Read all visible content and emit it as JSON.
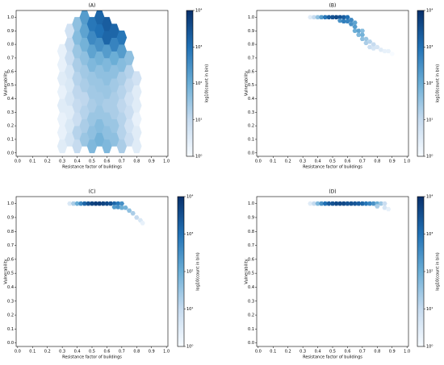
{
  "chart_data": [
    {
      "type": "hexbin",
      "title": "(A)",
      "xlabel": "Resistance factor of buildings",
      "ylabel": "Vulnerability",
      "colorbar_label": "log10(count in bin)",
      "xlim": [
        -0.01,
        1.01
      ],
      "ylim": [
        -0.025,
        1.05
      ],
      "xticks": [
        {
          "value": 0,
          "label": "0.0"
        },
        0.1,
        0.2,
        0.3,
        0.4,
        0.5,
        0.6,
        0.7,
        0.8,
        0.9,
        {
          "value": 1,
          "label": "1.0"
        }
      ],
      "yticks": [
        {
          "value": 0,
          "label": "0.0"
        },
        0.1,
        0.2,
        0.3,
        0.4,
        0.5,
        0.6,
        0.7,
        0.8,
        0.9,
        {
          "value": 1,
          "label": "1.0"
        }
      ],
      "clim": [
        1,
        10000
      ],
      "cscale": "log",
      "cticks": [
        {
          "value": 1,
          "label": "10⁰"
        },
        {
          "value": 10,
          "label": "10¹"
        },
        {
          "value": 100,
          "label": "10²"
        },
        {
          "value": 1000,
          "label": "10³"
        },
        {
          "value": 10000,
          "label": "10⁴"
        }
      ],
      "colormap": [
        "#f7fbff",
        "#c6dbef",
        "#6baed6",
        "#2171b5",
        "#08306b"
      ],
      "x": [
        0.3,
        0.3,
        0.3,
        0.3,
        0.3,
        0.3,
        0.3,
        0.3,
        0.35,
        0.35,
        0.35,
        0.35,
        0.35,
        0.35,
        0.35,
        0.35,
        0.35,
        0.4,
        0.4,
        0.4,
        0.4,
        0.4,
        0.4,
        0.4,
        0.4,
        0.4,
        0.4,
        0.45,
        0.45,
        0.45,
        0.45,
        0.45,
        0.45,
        0.45,
        0.45,
        0.45,
        0.45,
        0.5,
        0.5,
        0.5,
        0.5,
        0.5,
        0.5,
        0.5,
        0.5,
        0.5,
        0.5,
        0.55,
        0.55,
        0.55,
        0.55,
        0.55,
        0.55,
        0.55,
        0.55,
        0.55,
        0.55,
        0.6,
        0.6,
        0.6,
        0.6,
        0.6,
        0.6,
        0.6,
        0.6,
        0.6,
        0.6,
        0.65,
        0.65,
        0.65,
        0.65,
        0.65,
        0.65,
        0.65,
        0.65,
        0.65,
        0.7,
        0.7,
        0.7,
        0.7,
        0.7,
        0.7,
        0.7,
        0.7,
        0.7,
        0.75,
        0.75,
        0.75,
        0.75,
        0.75,
        0.75,
        0.75,
        0.8,
        0.8,
        0.8,
        0.8,
        0.8,
        0.8
      ],
      "y": [
        0.05,
        0.15,
        0.25,
        0.35,
        0.45,
        0.55,
        0.65,
        0.75,
        0.1,
        0.2,
        0.3,
        0.4,
        0.5,
        0.6,
        0.7,
        0.8,
        0.9,
        0.05,
        0.15,
        0.25,
        0.35,
        0.45,
        0.55,
        0.65,
        0.75,
        0.85,
        0.95,
        0.1,
        0.2,
        0.3,
        0.4,
        0.5,
        0.6,
        0.7,
        0.8,
        0.9,
        1.0,
        0.05,
        0.15,
        0.25,
        0.35,
        0.45,
        0.55,
        0.65,
        0.75,
        0.85,
        0.95,
        0.1,
        0.2,
        0.3,
        0.4,
        0.5,
        0.6,
        0.7,
        0.8,
        0.9,
        1.0,
        0.05,
        0.15,
        0.25,
        0.35,
        0.45,
        0.55,
        0.65,
        0.75,
        0.85,
        0.95,
        0.1,
        0.2,
        0.3,
        0.4,
        0.5,
        0.6,
        0.7,
        0.8,
        0.9,
        0.05,
        0.15,
        0.25,
        0.35,
        0.45,
        0.55,
        0.65,
        0.75,
        0.85,
        0.1,
        0.2,
        0.3,
        0.4,
        0.5,
        0.6,
        0.7,
        0.05,
        0.15,
        0.25,
        0.35,
        0.45,
        0.55
      ],
      "values": [
        3,
        2,
        2,
        3,
        2,
        3,
        2,
        2,
        5,
        4,
        3,
        5,
        4,
        5,
        8,
        10,
        6,
        10,
        15,
        8,
        10,
        12,
        15,
        20,
        30,
        50,
        40,
        30,
        20,
        15,
        12,
        20,
        25,
        40,
        80,
        150,
        200,
        60,
        40,
        30,
        20,
        25,
        30,
        60,
        150,
        400,
        800,
        80,
        50,
        30,
        25,
        30,
        40,
        80,
        300,
        1000,
        1500,
        60,
        40,
        30,
        20,
        30,
        40,
        60,
        200,
        1500,
        2000,
        40,
        30,
        20,
        20,
        25,
        40,
        100,
        500,
        1500,
        20,
        15,
        15,
        12,
        15,
        20,
        50,
        200,
        800,
        8,
        6,
        8,
        6,
        10,
        15,
        40,
        3,
        3,
        2,
        3,
        3,
        6
      ]
    },
    {
      "type": "hexbin",
      "title": "(B)",
      "xlabel": "Resistance factor of buildings",
      "ylabel": "Vulnerability",
      "colorbar_label": "log10(count in bin)",
      "xlim": [
        -0.01,
        1.01
      ],
      "ylim": [
        -0.025,
        1.05
      ],
      "xticks": [
        {
          "value": 0,
          "label": "0.0"
        },
        0.1,
        0.2,
        0.3,
        0.4,
        0.5,
        0.6,
        0.7,
        0.8,
        0.9,
        {
          "value": 1,
          "label": "1.0"
        }
      ],
      "yticks": [
        {
          "value": 0,
          "label": "0.0"
        },
        0.1,
        0.2,
        0.3,
        0.4,
        0.5,
        0.6,
        0.7,
        0.8,
        0.9,
        {
          "value": 1,
          "label": "1.0"
        }
      ],
      "clim": [
        1,
        10000
      ],
      "cscale": "log",
      "cticks": [
        {
          "value": 1,
          "label": "10⁰"
        },
        {
          "value": 10,
          "label": "10¹"
        },
        {
          "value": 100,
          "label": "10²"
        },
        {
          "value": 1000,
          "label": "10³"
        },
        {
          "value": 10000,
          "label": "10⁴"
        }
      ],
      "colormap": [
        "#f7fbff",
        "#c6dbef",
        "#6baed6",
        "#2171b5",
        "#08306b"
      ],
      "x": [
        0.35,
        0.375,
        0.4,
        0.425,
        0.45,
        0.475,
        0.5,
        0.525,
        0.55,
        0.575,
        0.6,
        0.55,
        0.575,
        0.6,
        0.625,
        0.625,
        0.65,
        0.65,
        0.65,
        0.675,
        0.675,
        0.7,
        0.7,
        0.7,
        0.725,
        0.725,
        0.75,
        0.75,
        0.775,
        0.775,
        0.8,
        0.825,
        0.85,
        0.875,
        0.9
      ],
      "y": [
        1.0,
        1.0,
        1.0,
        1.0,
        1.0,
        1.0,
        1.0,
        1.0,
        1.0,
        1.0,
        1.0,
        0.975,
        0.97,
        0.97,
        0.98,
        0.95,
        0.96,
        0.93,
        0.9,
        0.9,
        0.87,
        0.9,
        0.87,
        0.84,
        0.84,
        0.81,
        0.82,
        0.78,
        0.8,
        0.77,
        0.78,
        0.76,
        0.75,
        0.75,
        0.73
      ],
      "values": [
        3,
        10,
        40,
        200,
        800,
        2000,
        3000,
        4000,
        3000,
        2000,
        1000,
        300,
        600,
        500,
        400,
        300,
        150,
        200,
        100,
        150,
        60,
        50,
        80,
        40,
        30,
        20,
        15,
        8,
        10,
        5,
        5,
        3,
        2,
        2,
        1
      ]
    },
    {
      "type": "hexbin",
      "title": "(C)",
      "xlabel": "Resistance factor of buildings",
      "ylabel": "Vulnerability",
      "colorbar_label": "log10(count in bin)",
      "xlim": [
        -0.01,
        1.01
      ],
      "ylim": [
        -0.025,
        1.05
      ],
      "xticks": [
        {
          "value": 0,
          "label": "0.0"
        },
        0.1,
        0.2,
        0.3,
        0.4,
        0.5,
        0.6,
        0.7,
        0.8,
        0.9,
        {
          "value": 1,
          "label": "1.0"
        }
      ],
      "yticks": [
        {
          "value": 0,
          "label": "0.0"
        },
        0.1,
        0.2,
        0.3,
        0.4,
        0.5,
        0.6,
        0.7,
        0.8,
        0.9,
        {
          "value": 1,
          "label": "1.0"
        }
      ],
      "clim": [
        1,
        10000
      ],
      "cscale": "log",
      "cticks": [
        {
          "value": 1,
          "label": "10⁰"
        },
        {
          "value": 10,
          "label": "10¹"
        },
        {
          "value": 100,
          "label": "10²"
        },
        {
          "value": 1000,
          "label": "10³"
        },
        {
          "value": 10000,
          "label": "10⁴"
        }
      ],
      "colormap": [
        "#f7fbff",
        "#c6dbef",
        "#6baed6",
        "#2171b5",
        "#08306b"
      ],
      "x": [
        0.35,
        0.375,
        0.4,
        0.425,
        0.45,
        0.475,
        0.5,
        0.525,
        0.55,
        0.575,
        0.6,
        0.625,
        0.65,
        0.675,
        0.7,
        0.65,
        0.675,
        0.7,
        0.725,
        0.75,
        0.775,
        0.8,
        0.825,
        0.84
      ],
      "y": [
        1.0,
        1.0,
        1.0,
        1.0,
        1.0,
        1.0,
        1.0,
        1.0,
        1.0,
        1.0,
        1.0,
        1.0,
        1.0,
        1.0,
        1.0,
        0.975,
        0.975,
        0.97,
        0.97,
        0.95,
        0.93,
        0.9,
        0.88,
        0.86
      ],
      "values": [
        4,
        20,
        100,
        400,
        1500,
        3000,
        5000,
        6000,
        6000,
        5000,
        4000,
        3000,
        1500,
        800,
        300,
        200,
        300,
        100,
        80,
        40,
        20,
        10,
        4,
        2
      ]
    },
    {
      "type": "hexbin",
      "title": "(D)",
      "xlabel": "Resistance factor of buildings",
      "ylabel": "Vulnerability",
      "colorbar_label": "log10(count in bin)",
      "xlim": [
        -0.01,
        1.01
      ],
      "ylim": [
        -0.025,
        1.05
      ],
      "xticks": [
        {
          "value": 0,
          "label": "0.0"
        },
        0.1,
        0.2,
        0.3,
        0.4,
        0.5,
        0.6,
        0.7,
        0.8,
        0.9,
        {
          "value": 1,
          "label": "1.0"
        }
      ],
      "yticks": [
        {
          "value": 0,
          "label": "0.0"
        },
        0.1,
        0.2,
        0.3,
        0.4,
        0.5,
        0.6,
        0.7,
        0.8,
        0.9,
        {
          "value": 1,
          "label": "1.0"
        }
      ],
      "clim": [
        1,
        10000
      ],
      "cscale": "log",
      "cticks": [
        {
          "value": 1,
          "label": "10⁰"
        },
        {
          "value": 10,
          "label": "10¹"
        },
        {
          "value": 100,
          "label": "10²"
        },
        {
          "value": 1000,
          "label": "10³"
        },
        {
          "value": 10000,
          "label": "10⁴"
        }
      ],
      "colormap": [
        "#f7fbff",
        "#c6dbef",
        "#6baed6",
        "#2171b5",
        "#08306b"
      ],
      "x": [
        0.35,
        0.375,
        0.4,
        0.425,
        0.45,
        0.475,
        0.5,
        0.525,
        0.55,
        0.575,
        0.6,
        0.625,
        0.65,
        0.675,
        0.7,
        0.725,
        0.75,
        0.775,
        0.8,
        0.825,
        0.85,
        0.8,
        0.85,
        0.875
      ],
      "y": [
        1.0,
        1.0,
        1.0,
        1.0,
        1.0,
        1.0,
        1.0,
        1.0,
        1.0,
        1.0,
        1.0,
        1.0,
        1.0,
        1.0,
        1.0,
        1.0,
        1.0,
        1.0,
        1.0,
        1.0,
        1.0,
        0.98,
        0.97,
        0.96
      ],
      "values": [
        3,
        10,
        60,
        300,
        1000,
        2000,
        3000,
        4000,
        4000,
        4000,
        3000,
        3000,
        2500,
        2000,
        1500,
        800,
        500,
        300,
        100,
        30,
        8,
        20,
        5,
        2
      ]
    }
  ]
}
